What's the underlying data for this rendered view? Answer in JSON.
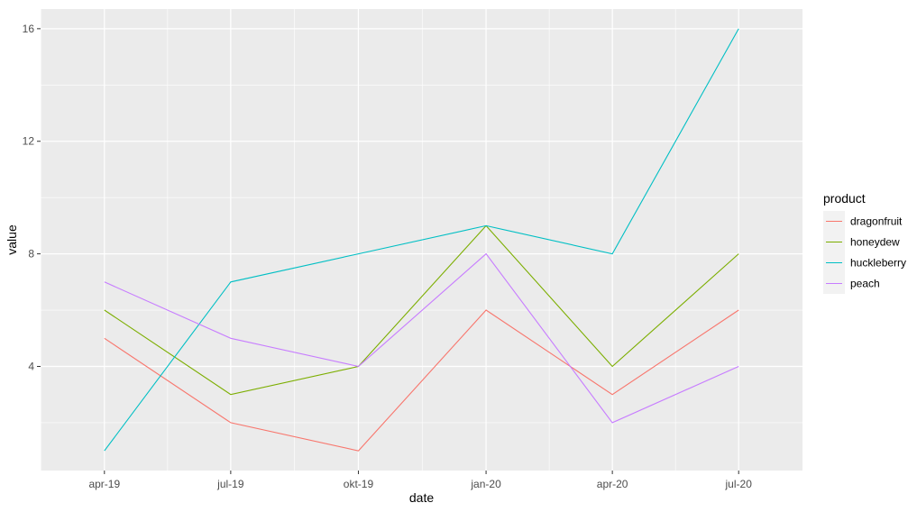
{
  "chart_data": {
    "type": "line",
    "title": "",
    "xlabel": "date",
    "ylabel": "value",
    "x": [
      "2019-04-01",
      "2019-07-01",
      "2019-10-01",
      "2020-01-01",
      "2020-04-01",
      "2020-07-01"
    ],
    "x_tick_labels": [
      "apr-19",
      "jul-19",
      "okt-19",
      "jan-20",
      "apr-20",
      "jul-20"
    ],
    "xlim": [
      "2019-02-14",
      "2020-08-16"
    ],
    "ylim": [
      0.3,
      16.7
    ],
    "y_ticks": [
      4,
      8,
      12,
      16
    ],
    "y_tick_labels": [
      "4",
      "8",
      "12",
      "16"
    ],
    "grid": true,
    "legend": {
      "title": "product",
      "position": "right"
    },
    "series": [
      {
        "name": "dragonfruit",
        "color": "#F8766D",
        "values": [
          5,
          2,
          1,
          6,
          3,
          6
        ]
      },
      {
        "name": "honeydew",
        "color": "#7CAE00",
        "values": [
          6,
          3,
          4,
          9,
          4,
          8
        ]
      },
      {
        "name": "huckleberry",
        "color": "#00BFC4",
        "values": [
          1,
          7,
          8,
          9,
          8,
          16
        ]
      },
      {
        "name": "peach",
        "color": "#C77CFF",
        "values": [
          7,
          5,
          4,
          8,
          2,
          4
        ]
      }
    ],
    "panel_background": "#EBEBEB",
    "grid_color": "#FFFFFF"
  }
}
